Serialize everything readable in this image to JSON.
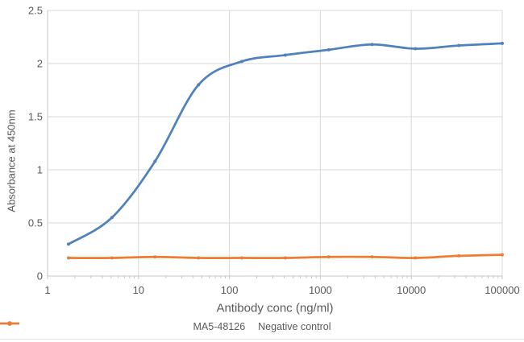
{
  "chart_data": {
    "type": "line",
    "title": "",
    "xlabel": "Antibody conc (ng/ml)",
    "ylabel": "Absorbance at 450nm",
    "x_scale": "log",
    "xlim": [
      1,
      100000
    ],
    "ylim": [
      0,
      2.5
    ],
    "x_ticks": [
      1,
      10,
      100,
      1000,
      10000,
      100000
    ],
    "x_tick_labels": [
      "1",
      "10",
      "100",
      "1000",
      "10000",
      "100000"
    ],
    "y_ticks": [
      0,
      0.5,
      1,
      1.5,
      2,
      2.5
    ],
    "y_tick_labels": [
      "0",
      "0.5",
      "1",
      "1.5",
      "2",
      "2.5"
    ],
    "grid": true,
    "legend_position": "bottom",
    "series": [
      {
        "name": "MA5-48126",
        "color": "#4F81BD",
        "marker": "circle",
        "x": [
          1.7,
          5.1,
          15.2,
          45.7,
          137,
          412,
          1235,
          3704,
          11111,
          33333,
          100000
        ],
        "y": [
          0.3,
          0.55,
          1.08,
          1.8,
          2.02,
          2.08,
          2.13,
          2.18,
          2.14,
          2.17,
          2.19
        ]
      },
      {
        "name": "Negative control",
        "color": "#ED7D31",
        "marker": "circle",
        "x": [
          1.7,
          5.1,
          15.2,
          45.7,
          137,
          412,
          1235,
          3704,
          11111,
          33333,
          100000
        ],
        "y": [
          0.17,
          0.17,
          0.18,
          0.17,
          0.17,
          0.17,
          0.18,
          0.18,
          0.17,
          0.19,
          0.2
        ]
      }
    ]
  },
  "styles": {
    "grid_color": "#D9D9D9",
    "axis_color": "#C6C6C6",
    "text_color": "#595959",
    "background": "#FFFFFF"
  }
}
